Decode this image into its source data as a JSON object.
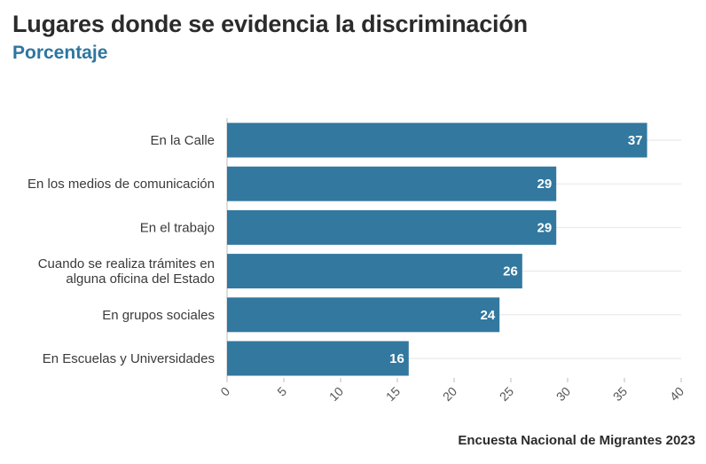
{
  "chart_data": {
    "type": "bar",
    "orientation": "horizontal",
    "title": "Lugares donde se evidencia la discriminación",
    "subtitle": "Porcentaje",
    "source": "Encuesta Nacional de Migrantes 2023",
    "categories": [
      "En la Calle",
      "En los medios de comunicación",
      "En el trabajo",
      "Cuando se realiza trámites en alguna oficina del Estado",
      "En grupos sociales",
      "En Escuelas y Universidades"
    ],
    "category_lines": [
      [
        "En la Calle"
      ],
      [
        "En los medios de comunicación"
      ],
      [
        "En el trabajo"
      ],
      [
        "Cuando se realiza trámites en",
        "alguna oficina del Estado"
      ],
      [
        "En grupos sociales"
      ],
      [
        "En Escuelas y Universidades"
      ]
    ],
    "values": [
      37,
      29,
      29,
      26,
      24,
      16
    ],
    "xlim": [
      0,
      40
    ],
    "xticks": [
      0,
      5,
      10,
      15,
      20,
      25,
      30,
      35,
      40
    ],
    "grid": true,
    "bar_color": "#32789f",
    "xlabel": "",
    "ylabel": ""
  }
}
